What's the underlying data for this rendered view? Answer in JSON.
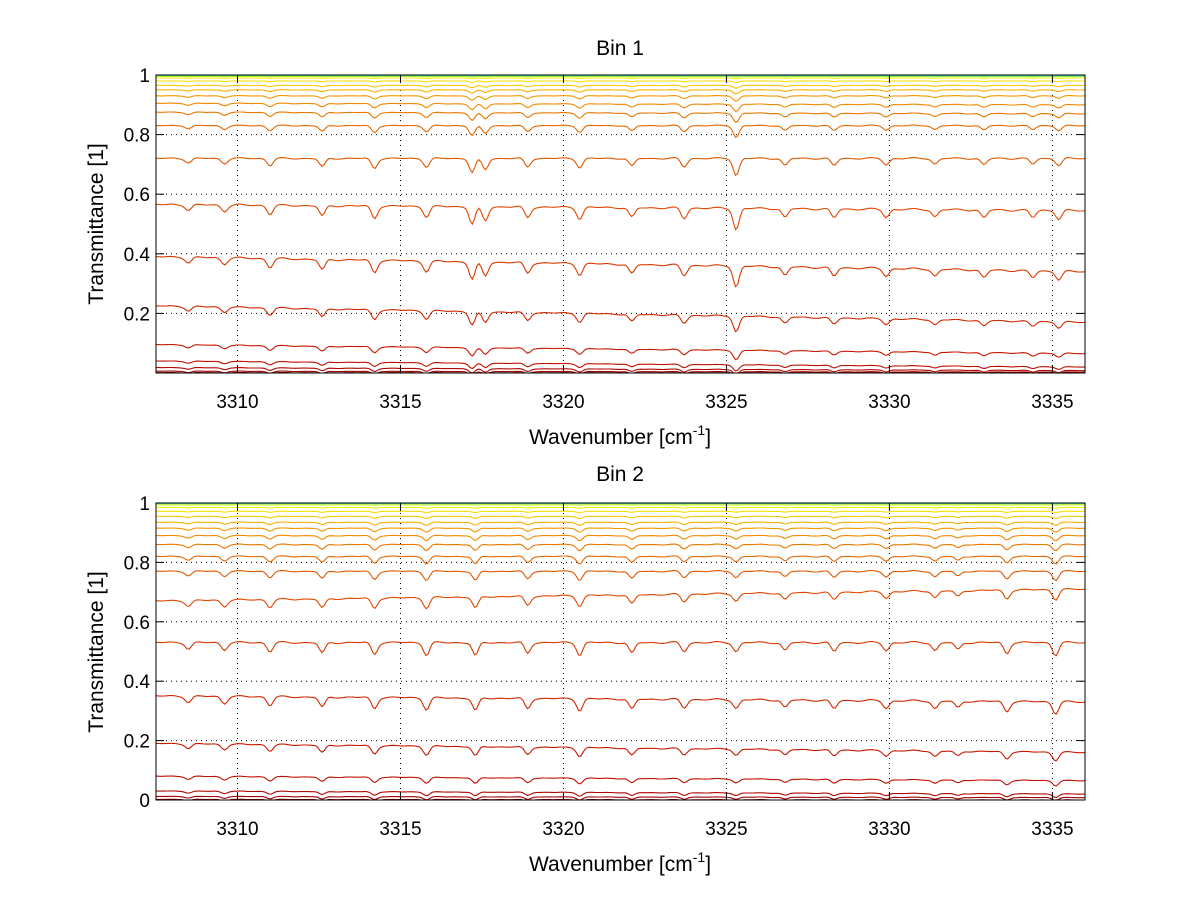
{
  "chart_data": [
    {
      "type": "line",
      "title": "Bin 1",
      "xlabel": "Wavenumber [cm",
      "xlabel_sup": "-1",
      "xlabel_suffix": "]",
      "ylabel": "Transmittance [1]",
      "xlim": [
        3307.5,
        3336
      ],
      "ylim": [
        0,
        1
      ],
      "xticks": [
        3310,
        3315,
        3320,
        3325,
        3330,
        3335
      ],
      "yticks": [
        0.2,
        0.4,
        0.6,
        0.8,
        1
      ],
      "ytick_labels": [
        "0.2",
        "0.4",
        "0.6",
        "0.8",
        "1"
      ],
      "grid": true,
      "absorption_lines": [
        {
          "x": 3308.5,
          "depth": 0.3
        },
        {
          "x": 3309.6,
          "depth": 0.35
        },
        {
          "x": 3311.0,
          "depth": 0.5
        },
        {
          "x": 3312.6,
          "depth": 0.6
        },
        {
          "x": 3314.2,
          "depth": 0.7
        },
        {
          "x": 3315.8,
          "depth": 0.6
        },
        {
          "x": 3317.2,
          "depth": 1.0
        },
        {
          "x": 3317.6,
          "depth": 0.8
        },
        {
          "x": 3318.9,
          "depth": 0.6
        },
        {
          "x": 3320.5,
          "depth": 0.65
        },
        {
          "x": 3322.1,
          "depth": 0.55
        },
        {
          "x": 3323.7,
          "depth": 0.6
        },
        {
          "x": 3325.3,
          "depth": 1.2
        },
        {
          "x": 3326.8,
          "depth": 0.5
        },
        {
          "x": 3328.3,
          "depth": 0.5
        },
        {
          "x": 3329.9,
          "depth": 0.45
        },
        {
          "x": 3331.4,
          "depth": 0.4
        },
        {
          "x": 3332.9,
          "depth": 0.45
        },
        {
          "x": 3334.4,
          "depth": 0.4
        },
        {
          "x": 3335.2,
          "depth": 0.5
        }
      ],
      "series": [
        {
          "color": "#00C8FF",
          "start": 1.0,
          "end": 1.0
        },
        {
          "color": "#40E0C0",
          "start": 0.998,
          "end": 0.997
        },
        {
          "color": "#C8F000",
          "start": 0.995,
          "end": 0.995
        },
        {
          "color": "#F0F000",
          "start": 0.99,
          "end": 0.99
        },
        {
          "color": "#F8E000",
          "start": 0.98,
          "end": 0.98
        },
        {
          "color": "#F8C800",
          "start": 0.965,
          "end": 0.965
        },
        {
          "color": "#F8B000",
          "start": 0.95,
          "end": 0.95
        },
        {
          "color": "#F09800",
          "start": 0.93,
          "end": 0.93
        },
        {
          "color": "#F08800",
          "start": 0.905,
          "end": 0.9
        },
        {
          "color": "#E87800",
          "start": 0.875,
          "end": 0.87
        },
        {
          "color": "#E86800",
          "start": 0.83,
          "end": 0.83
        },
        {
          "color": "#E05800",
          "start": 0.72,
          "end": 0.72
        },
        {
          "color": "#E04800",
          "start": 0.565,
          "end": 0.545
        },
        {
          "color": "#D83800",
          "start": 0.39,
          "end": 0.34
        },
        {
          "color": "#D02800",
          "start": 0.225,
          "end": 0.17
        },
        {
          "color": "#C81800",
          "start": 0.095,
          "end": 0.065
        },
        {
          "color": "#C01000",
          "start": 0.04,
          "end": 0.02
        },
        {
          "color": "#B00800",
          "start": 0.018,
          "end": 0.008
        },
        {
          "color": "#A00000",
          "start": 0.006,
          "end": 0.003
        },
        {
          "color": "#900000",
          "start": 0.001,
          "end": 0.0
        }
      ]
    },
    {
      "type": "line",
      "title": "Bin 2",
      "xlabel": "Wavenumber [cm",
      "xlabel_sup": "-1",
      "xlabel_suffix": "]",
      "ylabel": "Transmittance [1]",
      "xlim": [
        3307.5,
        3336
      ],
      "ylim": [
        0,
        1
      ],
      "xticks": [
        3310,
        3315,
        3320,
        3325,
        3330,
        3335
      ],
      "yticks": [
        0,
        0.2,
        0.4,
        0.6,
        0.8,
        1
      ],
      "ytick_labels": [
        "0",
        "0.2",
        "0.4",
        "0.6",
        "0.8",
        "1"
      ],
      "grid": true,
      "absorption_lines": [
        {
          "x": 3308.5,
          "depth": 0.35
        },
        {
          "x": 3309.6,
          "depth": 0.4
        },
        {
          "x": 3311.0,
          "depth": 0.5
        },
        {
          "x": 3312.6,
          "depth": 0.6
        },
        {
          "x": 3314.2,
          "depth": 0.65
        },
        {
          "x": 3315.8,
          "depth": 0.7
        },
        {
          "x": 3317.3,
          "depth": 0.75
        },
        {
          "x": 3318.9,
          "depth": 0.6
        },
        {
          "x": 3320.5,
          "depth": 0.7
        },
        {
          "x": 3322.1,
          "depth": 0.6
        },
        {
          "x": 3323.7,
          "depth": 0.5
        },
        {
          "x": 3325.3,
          "depth": 0.5
        },
        {
          "x": 3326.8,
          "depth": 0.45
        },
        {
          "x": 3328.3,
          "depth": 0.5
        },
        {
          "x": 3329.9,
          "depth": 0.45
        },
        {
          "x": 3331.4,
          "depth": 0.45
        },
        {
          "x": 3332.1,
          "depth": 0.4
        },
        {
          "x": 3333.6,
          "depth": 0.6
        },
        {
          "x": 3335.1,
          "depth": 0.7
        }
      ],
      "series": [
        {
          "color": "#00C8FF",
          "start": 1.0,
          "end": 1.0
        },
        {
          "color": "#40E0C0",
          "start": 0.998,
          "end": 0.998
        },
        {
          "color": "#C8F000",
          "start": 0.994,
          "end": 0.994
        },
        {
          "color": "#F0F000",
          "start": 0.985,
          "end": 0.985
        },
        {
          "color": "#F8E000",
          "start": 0.972,
          "end": 0.972
        },
        {
          "color": "#F8C800",
          "start": 0.955,
          "end": 0.955
        },
        {
          "color": "#F8B000",
          "start": 0.935,
          "end": 0.935
        },
        {
          "color": "#F09800",
          "start": 0.915,
          "end": 0.915
        },
        {
          "color": "#F08800",
          "start": 0.89,
          "end": 0.89
        },
        {
          "color": "#E87800",
          "start": 0.86,
          "end": 0.86
        },
        {
          "color": "#E86800",
          "start": 0.82,
          "end": 0.82
        },
        {
          "color": "#E05800",
          "start": 0.77,
          "end": 0.77
        },
        {
          "color": "#E04800",
          "start": 0.67,
          "end": 0.71
        },
        {
          "color": "#D83800",
          "start": 0.53,
          "end": 0.53
        },
        {
          "color": "#D02800",
          "start": 0.35,
          "end": 0.33
        },
        {
          "color": "#C81800",
          "start": 0.19,
          "end": 0.16
        },
        {
          "color": "#C01000",
          "start": 0.08,
          "end": 0.065
        },
        {
          "color": "#B00800",
          "start": 0.03,
          "end": 0.02
        },
        {
          "color": "#A00000",
          "start": 0.012,
          "end": 0.008
        },
        {
          "color": "#900000",
          "start": 0.002,
          "end": 0.0
        }
      ]
    }
  ]
}
